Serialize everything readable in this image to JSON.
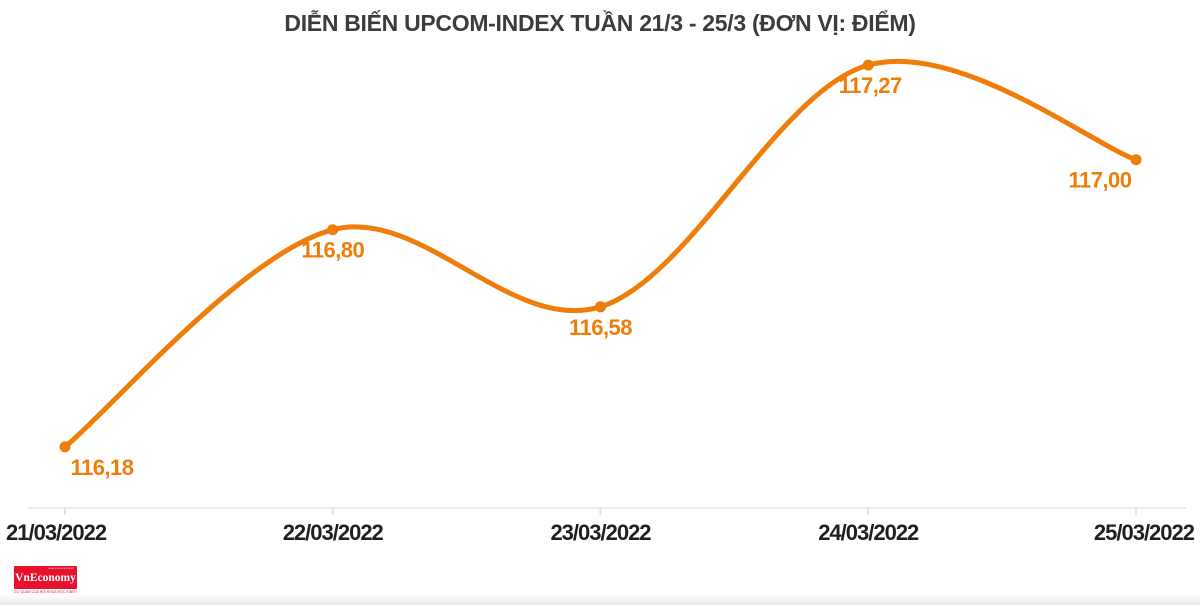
{
  "page": {
    "background": "#ffffff"
  },
  "chart_data": {
    "type": "line",
    "curve": "spline",
    "title": "DIỄN BIẾN UPCOM-INDEX TUẦN 21/3 - 25/3 (ĐƠN VỊ: ĐIỂM)",
    "unit": "ĐIỂM",
    "categories": [
      "21/03/2022",
      "22/03/2022",
      "23/03/2022",
      "24/03/2022",
      "25/03/2022"
    ],
    "values": [
      116.18,
      116.8,
      116.58,
      117.27,
      117.0
    ],
    "value_labels": [
      "116,18",
      "116,80",
      "116,58",
      "117,27",
      "117,00"
    ],
    "ylim": [
      116.0,
      117.45
    ],
    "grid": "off",
    "legend": "none",
    "colors": {
      "line": "#EF7D0A",
      "marker": "#EF7D0A",
      "value_label": "#EF7D0A",
      "axis_line": "#ECECEC",
      "tick": "#E3E3E3",
      "date_label": "#1F1F1F",
      "title": "#3C3C3C"
    }
  },
  "footer": {
    "logo_text": "VnEconomy",
    "logo_bg": "#E8112D",
    "logo_micro_top": "www.vneconomy.vn",
    "logo_tagline": "CƠ QUAN CỦA HỘI KHOA HỌC KINH TẾ VIỆT NAM"
  }
}
